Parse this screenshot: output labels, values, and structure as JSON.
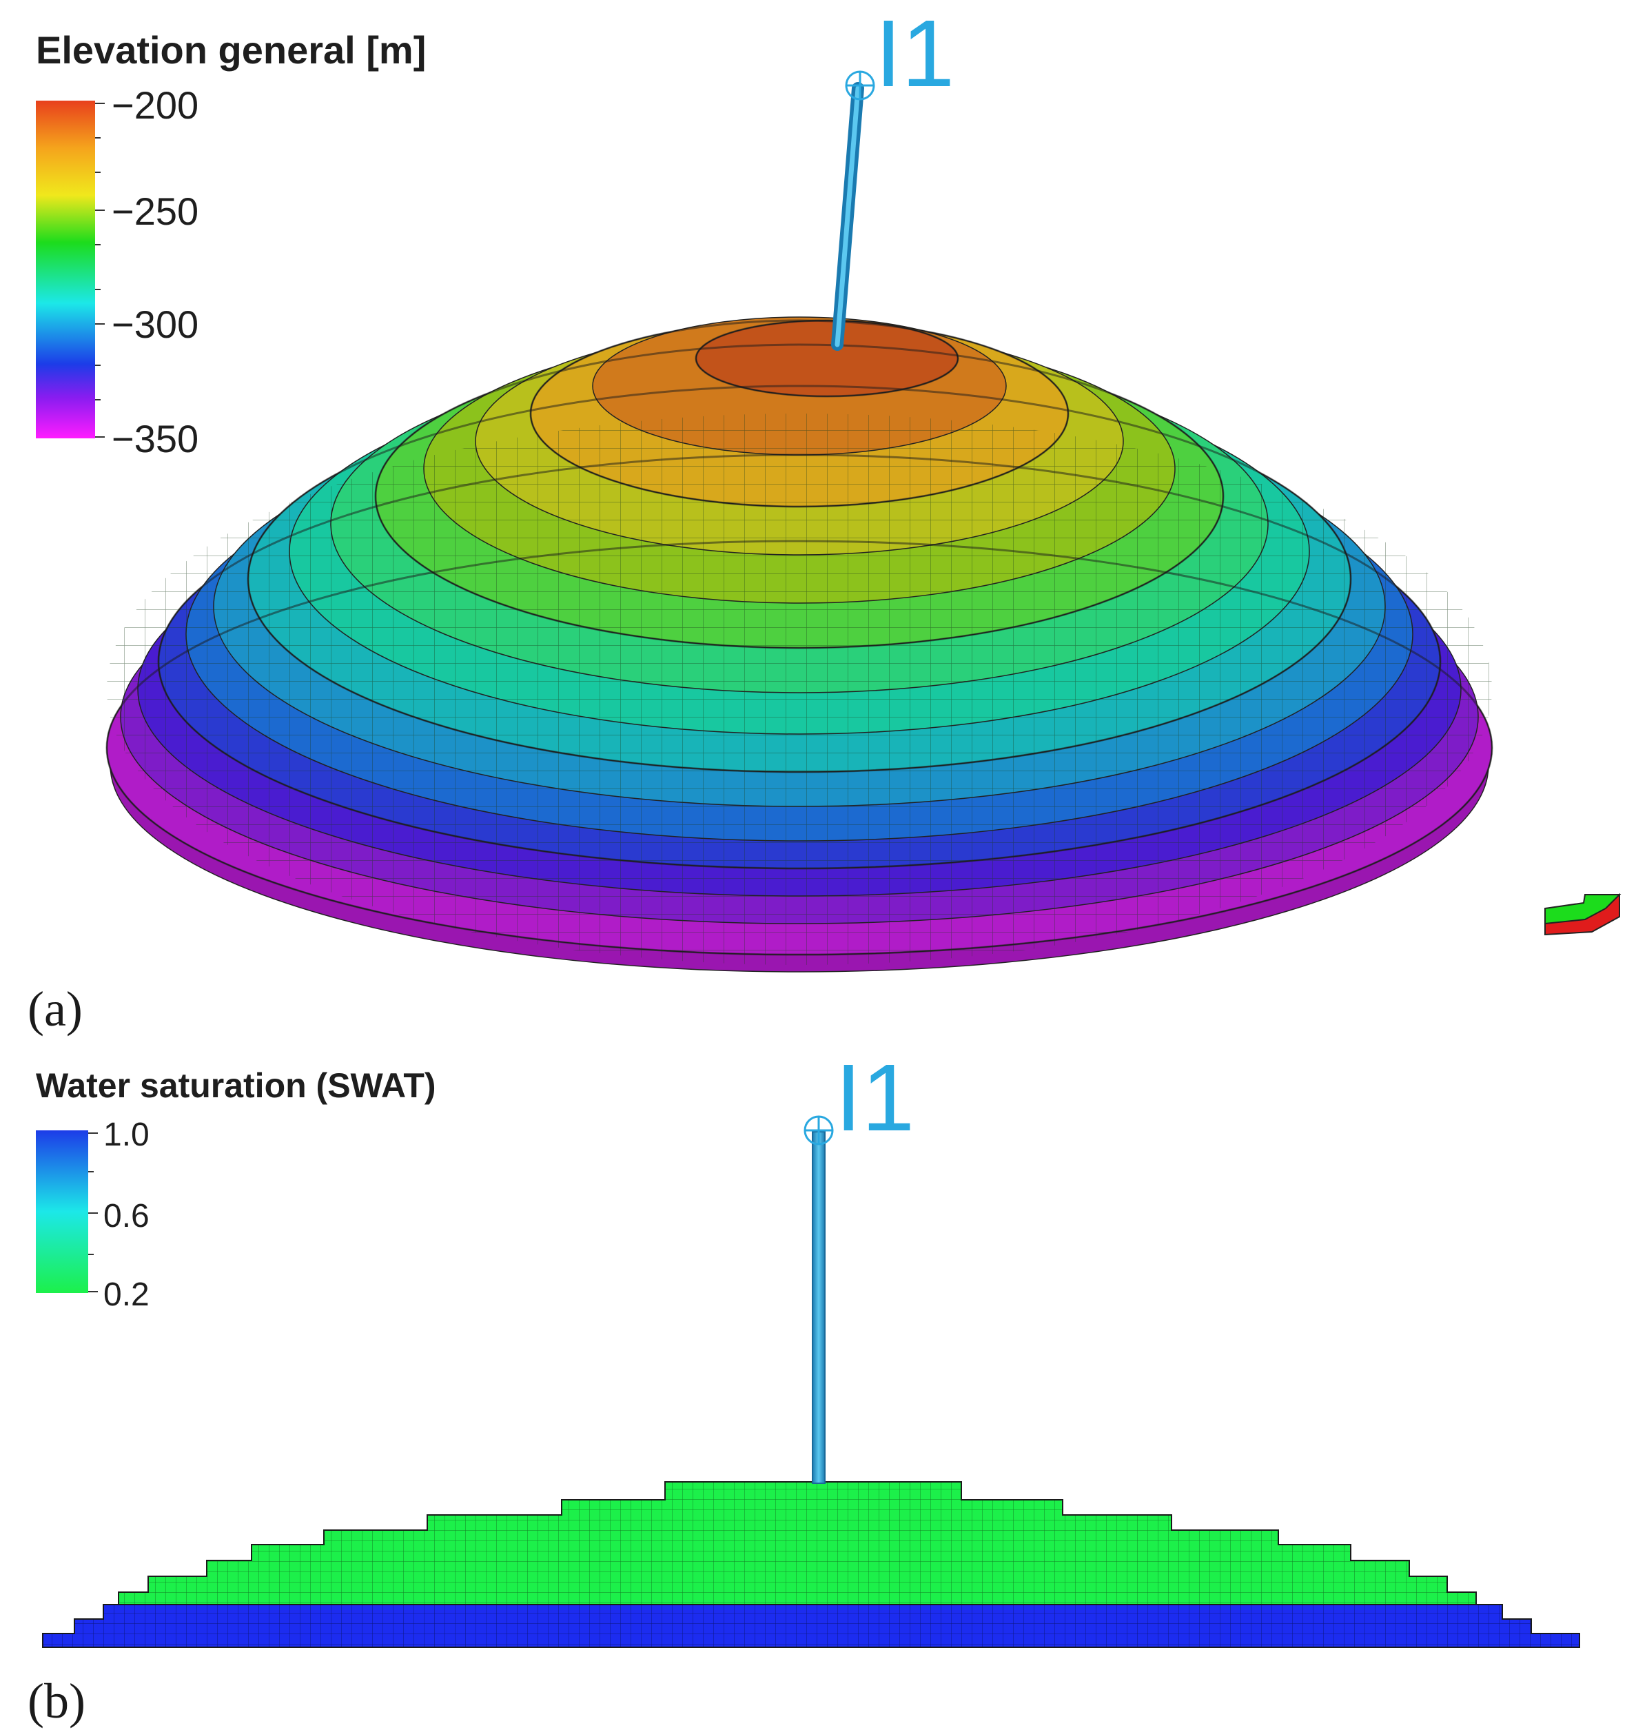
{
  "panel_a": {
    "label": "(a)",
    "legend": {
      "title": "Elevation general [m]",
      "ticks": [
        "−200",
        "−250",
        "−300",
        "−350"
      ],
      "colors": [
        "#e8401c",
        "#f5a41c",
        "#f0e81c",
        "#1cdc1c",
        "#1ce8e8",
        "#1c3ce8",
        "#8a1cf0",
        "#ff1cff"
      ]
    },
    "well": {
      "name": "I1",
      "color": "#29a8e0"
    },
    "model": {
      "description_colors": {
        "top": "#c2531a",
        "upper": "#d8a81c",
        "mid_upper": "#8cc21c",
        "mid": "#18c8a0",
        "mid_lower": "#1c8ad0",
        "lower": "#4a1cd0",
        "base": "#b01cc8"
      }
    },
    "axis_indicator": {
      "colors": [
        "#1cdc1c",
        "#e01c1c"
      ]
    }
  },
  "panel_b": {
    "label": "(b)",
    "legend": {
      "title": "Water saturation (SWAT)",
      "ticks": [
        "1.0",
        "0.6",
        "0.2"
      ],
      "colors": [
        "#1c3ce8",
        "#1ce8e8",
        "#1cf04a"
      ]
    },
    "well": {
      "name": "I1",
      "color": "#29a8e0"
    },
    "model": {
      "oil_zone_color": "#1cf04a",
      "water_zone_color": "#1c2cf0"
    }
  }
}
